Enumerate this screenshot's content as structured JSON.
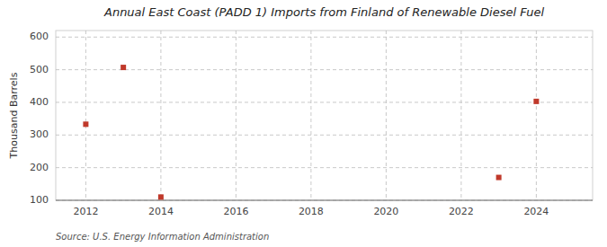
{
  "chart_data": {
    "type": "scatter",
    "title": "Annual East Coast (PADD 1) Imports from Finland of Renewable Diesel Fuel",
    "ylabel": "Thousand Barrels",
    "source": "Source: U.S. Energy Information Administration",
    "x": [
      2012,
      2013,
      2014,
      2023,
      2024
    ],
    "values": [
      333,
      507,
      110,
      170,
      403
    ],
    "color": "#c0392b",
    "marker": "square",
    "xlim": [
      2011.2,
      2025.5
    ],
    "ylim": [
      100,
      620
    ],
    "xticks": [
      2012,
      2014,
      2016,
      2018,
      2020,
      2022,
      2024
    ],
    "yticks": [
      100,
      200,
      300,
      400,
      500,
      600
    ],
    "grid": true
  }
}
